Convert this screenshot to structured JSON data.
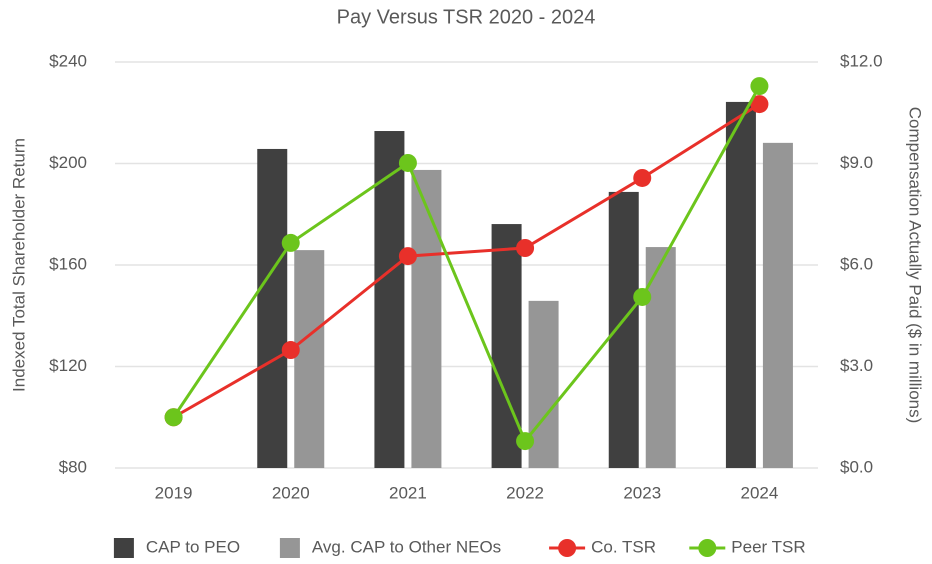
{
  "chart_data": {
    "type": "combo",
    "title": "Pay Versus TSR 2020 - 2024",
    "ylabel": "Indexed Total Shareholder Return",
    "y2label": "Compensation Actually Paid ($ in millions)",
    "categories": [
      "2019",
      "2020",
      "2021",
      "2022",
      "2023",
      "2024"
    ],
    "ylim": [
      80,
      240
    ],
    "yticks": [
      {
        "value": 80,
        "label": "$80"
      },
      {
        "value": 120,
        "label": "$120"
      },
      {
        "value": 160,
        "label": "$160"
      },
      {
        "value": 200,
        "label": "$200"
      },
      {
        "value": 240,
        "label": "$240"
      }
    ],
    "y2lim": [
      0,
      12
    ],
    "y2ticks": [
      {
        "value": 0,
        "label": "$0.0"
      },
      {
        "value": 3,
        "label": "$3.0"
      },
      {
        "value": 6,
        "label": "$6.0"
      },
      {
        "value": 9,
        "label": "$9.0"
      },
      {
        "value": 12,
        "label": "$12.0"
      }
    ],
    "grid": true,
    "legend": "bottom",
    "series": [
      {
        "name": "CAP to PEO",
        "kind": "bar",
        "axis": "y2",
        "color": "#404040",
        "values": [
          null,
          9.43,
          9.96,
          7.21,
          8.16,
          10.82
        ]
      },
      {
        "name": "Avg. CAP to Other NEOs",
        "kind": "bar",
        "axis": "y2",
        "color": "#969696",
        "values": [
          null,
          6.44,
          8.81,
          4.94,
          6.53,
          9.61
        ]
      },
      {
        "name": "Co. TSR",
        "kind": "line",
        "color": "#e8302a",
        "values": [
          100,
          126.5,
          163.5,
          166.7,
          194.3,
          223.4
        ]
      },
      {
        "name": "Peer TSR",
        "kind": "line",
        "color": "#6cc51c",
        "values": [
          100,
          168.7,
          200.2,
          90.6,
          147.4,
          230.5
        ]
      }
    ]
  }
}
